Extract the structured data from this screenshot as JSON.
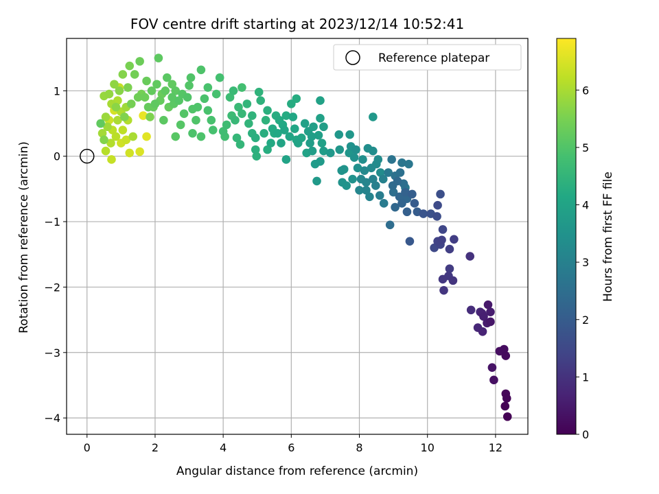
{
  "chart_data": {
    "type": "scatter",
    "title": "FOV centre drift starting at 2023/12/14 10:52:41",
    "xlabel": "Angular distance from reference (arcmin)",
    "ylabel": "Rotation from reference (arcmin)",
    "xlim": [
      -0.6,
      12.95
    ],
    "ylim": [
      -4.25,
      1.8
    ],
    "x_ticks": [
      0,
      2,
      4,
      6,
      8,
      10,
      12
    ],
    "y_ticks": [
      -4,
      -3,
      -2,
      -1,
      0,
      1
    ],
    "grid": true,
    "legend": {
      "position": "top-right",
      "entries": [
        "Reference platepar"
      ]
    },
    "colorbar": {
      "label": "Hours from first FF file",
      "colormap": "viridis",
      "range": [
        0,
        6.9
      ],
      "ticks": [
        0,
        1,
        2,
        3,
        4,
        5,
        6
      ]
    },
    "reference_point": {
      "x": 0,
      "y": 0,
      "label": "Reference platepar"
    },
    "points": [
      {
        "x": 12.35,
        "y": -3.98,
        "c": 0.0
      },
      {
        "x": 12.28,
        "y": -3.82,
        "c": 0.03
      },
      {
        "x": 12.33,
        "y": -3.7,
        "c": 0.06
      },
      {
        "x": 12.3,
        "y": -3.63,
        "c": 0.09
      },
      {
        "x": 12.3,
        "y": -3.05,
        "c": 0.18
      },
      {
        "x": 12.25,
        "y": -2.95,
        "c": 0.22
      },
      {
        "x": 12.12,
        "y": -2.98,
        "c": 0.26
      },
      {
        "x": 11.95,
        "y": -3.42,
        "c": 0.3
      },
      {
        "x": 11.9,
        "y": -3.23,
        "c": 0.35
      },
      {
        "x": 11.85,
        "y": -2.53,
        "c": 0.42
      },
      {
        "x": 11.78,
        "y": -2.27,
        "c": 0.48
      },
      {
        "x": 11.75,
        "y": -2.55,
        "c": 0.52
      },
      {
        "x": 11.85,
        "y": -2.38,
        "c": 0.56
      },
      {
        "x": 11.65,
        "y": -2.45,
        "c": 0.6
      },
      {
        "x": 11.6,
        "y": -2.4,
        "c": 0.65
      },
      {
        "x": 11.62,
        "y": -2.68,
        "c": 0.7
      },
      {
        "x": 11.48,
        "y": -2.62,
        "c": 0.75
      },
      {
        "x": 11.55,
        "y": -2.38,
        "c": 0.8
      },
      {
        "x": 11.28,
        "y": -2.35,
        "c": 0.88
      },
      {
        "x": 11.25,
        "y": -1.53,
        "c": 1.0
      },
      {
        "x": 10.75,
        "y": -1.9,
        "c": 1.05
      },
      {
        "x": 10.48,
        "y": -2.05,
        "c": 1.08
      },
      {
        "x": 10.45,
        "y": -1.88,
        "c": 1.12
      },
      {
        "x": 10.62,
        "y": -1.83,
        "c": 1.15
      },
      {
        "x": 10.65,
        "y": -1.72,
        "c": 1.2
      },
      {
        "x": 10.78,
        "y": -1.27,
        "c": 1.25
      },
      {
        "x": 10.65,
        "y": -1.42,
        "c": 1.28
      },
      {
        "x": 10.42,
        "y": -1.28,
        "c": 1.32
      },
      {
        "x": 10.3,
        "y": -1.3,
        "c": 1.36
      },
      {
        "x": 10.38,
        "y": -1.35,
        "c": 1.4
      },
      {
        "x": 10.45,
        "y": -1.12,
        "c": 1.45
      },
      {
        "x": 10.2,
        "y": -1.4,
        "c": 1.5
      },
      {
        "x": 10.3,
        "y": -0.75,
        "c": 1.56
      },
      {
        "x": 10.28,
        "y": -0.92,
        "c": 1.6
      },
      {
        "x": 10.38,
        "y": -0.58,
        "c": 1.65
      },
      {
        "x": 9.88,
        "y": -0.88,
        "c": 1.8
      },
      {
        "x": 9.48,
        "y": -1.3,
        "c": 1.9
      },
      {
        "x": 9.62,
        "y": -0.72,
        "c": 1.98
      },
      {
        "x": 9.55,
        "y": -0.58,
        "c": 2.05
      },
      {
        "x": 9.4,
        "y": -0.85,
        "c": 2.1
      },
      {
        "x": 9.35,
        "y": -0.55,
        "c": 2.15
      },
      {
        "x": 9.25,
        "y": -0.72,
        "c": 2.2
      },
      {
        "x": 9.18,
        "y": -0.62,
        "c": 2.25
      },
      {
        "x": 9.05,
        "y": -0.78,
        "c": 2.3
      },
      {
        "x": 9.12,
        "y": -0.38,
        "c": 2.35
      },
      {
        "x": 8.98,
        "y": -0.45,
        "c": 2.4
      },
      {
        "x": 8.9,
        "y": -1.05,
        "c": 2.45
      },
      {
        "x": 9.3,
        "y": -0.42,
        "c": 2.5
      },
      {
        "x": 9.2,
        "y": -0.25,
        "c": 2.55
      },
      {
        "x": 9.05,
        "y": -0.3,
        "c": 2.6
      },
      {
        "x": 8.95,
        "y": -0.05,
        "c": 2.65
      },
      {
        "x": 9.25,
        "y": -0.1,
        "c": 2.7
      },
      {
        "x": 9.45,
        "y": -0.12,
        "c": 2.72
      },
      {
        "x": 9.35,
        "y": -0.48,
        "c": 2.75
      },
      {
        "x": 8.85,
        "y": -0.25,
        "c": 2.8
      },
      {
        "x": 8.72,
        "y": -0.72,
        "c": 2.85
      },
      {
        "x": 8.6,
        "y": -0.6,
        "c": 2.9
      },
      {
        "x": 8.48,
        "y": -0.45,
        "c": 2.95
      },
      {
        "x": 8.4,
        "y": -0.35,
        "c": 3.0
      },
      {
        "x": 8.3,
        "y": -0.62,
        "c": 3.05
      },
      {
        "x": 8.2,
        "y": -0.52,
        "c": 3.1
      },
      {
        "x": 8.0,
        "y": -0.52,
        "c": 3.15
      },
      {
        "x": 8.05,
        "y": -0.35,
        "c": 3.18
      },
      {
        "x": 8.15,
        "y": -0.22,
        "c": 3.22
      },
      {
        "x": 8.35,
        "y": -0.18,
        "c": 3.25
      },
      {
        "x": 8.5,
        "y": -0.12,
        "c": 3.28
      },
      {
        "x": 8.62,
        "y": -0.25,
        "c": 3.3
      },
      {
        "x": 8.55,
        "y": -0.05,
        "c": 3.32
      },
      {
        "x": 8.4,
        "y": 0.08,
        "c": 3.35
      },
      {
        "x": 8.25,
        "y": 0.12,
        "c": 3.38
      },
      {
        "x": 8.1,
        "y": -0.05,
        "c": 3.4
      },
      {
        "x": 7.95,
        "y": -0.18,
        "c": 3.42
      },
      {
        "x": 7.85,
        "y": -0.02,
        "c": 3.45
      },
      {
        "x": 7.75,
        "y": 0.15,
        "c": 3.48
      },
      {
        "x": 7.62,
        "y": -0.45,
        "c": 3.5
      },
      {
        "x": 7.48,
        "y": -0.22,
        "c": 3.52
      },
      {
        "x": 7.55,
        "y": -0.2,
        "c": 3.55
      },
      {
        "x": 7.7,
        "y": 0.05,
        "c": 3.58
      },
      {
        "x": 7.42,
        "y": 0.1,
        "c": 3.6
      },
      {
        "x": 7.4,
        "y": 0.33,
        "c": 3.62
      },
      {
        "x": 7.72,
        "y": 0.33,
        "c": 3.64
      },
      {
        "x": 8.4,
        "y": 0.6,
        "c": 3.66
      },
      {
        "x": 6.75,
        "y": -0.38,
        "c": 3.7
      },
      {
        "x": 6.85,
        "y": -0.08,
        "c": 3.72
      },
      {
        "x": 6.7,
        "y": -0.12,
        "c": 3.75
      },
      {
        "x": 6.95,
        "y": 0.08,
        "c": 3.78
      },
      {
        "x": 6.62,
        "y": 0.08,
        "c": 3.8
      },
      {
        "x": 6.55,
        "y": 0.2,
        "c": 3.82
      },
      {
        "x": 6.5,
        "y": 0.38,
        "c": 3.84
      },
      {
        "x": 6.65,
        "y": 0.45,
        "c": 3.86
      },
      {
        "x": 6.8,
        "y": 0.32,
        "c": 3.88
      },
      {
        "x": 6.9,
        "y": 0.2,
        "c": 3.9
      },
      {
        "x": 6.85,
        "y": 0.58,
        "c": 3.92
      },
      {
        "x": 6.85,
        "y": 0.85,
        "c": 3.94
      },
      {
        "x": 6.45,
        "y": 0.05,
        "c": 3.96
      },
      {
        "x": 6.2,
        "y": 0.2,
        "c": 3.98
      },
      {
        "x": 5.85,
        "y": -0.05,
        "c": 4.0
      },
      {
        "x": 5.7,
        "y": 0.2,
        "c": 4.02
      },
      {
        "x": 5.8,
        "y": 0.4,
        "c": 4.04
      },
      {
        "x": 5.95,
        "y": 0.3,
        "c": 4.06
      },
      {
        "x": 6.1,
        "y": 0.42,
        "c": 4.08
      },
      {
        "x": 6.15,
        "y": 0.25,
        "c": 4.1
      },
      {
        "x": 6.05,
        "y": 0.6,
        "c": 4.12
      },
      {
        "x": 5.6,
        "y": 0.35,
        "c": 4.14
      },
      {
        "x": 5.4,
        "y": 0.2,
        "c": 4.16
      },
      {
        "x": 5.45,
        "y": 0.42,
        "c": 4.18
      },
      {
        "x": 5.65,
        "y": 0.55,
        "c": 4.2
      },
      {
        "x": 5.85,
        "y": 0.62,
        "c": 4.22
      },
      {
        "x": 6.0,
        "y": 0.8,
        "c": 4.24
      },
      {
        "x": 6.15,
        "y": 0.88,
        "c": 4.26
      },
      {
        "x": 5.3,
        "y": 0.1,
        "c": 4.28
      },
      {
        "x": 5.2,
        "y": 0.35,
        "c": 4.3
      },
      {
        "x": 4.95,
        "y": 0.28,
        "c": 4.32
      },
      {
        "x": 4.85,
        "y": 0.35,
        "c": 4.34
      },
      {
        "x": 4.95,
        "y": 0.1,
        "c": 4.36
      },
      {
        "x": 4.98,
        "y": 0.0,
        "c": 4.38
      },
      {
        "x": 5.25,
        "y": 0.55,
        "c": 4.4
      },
      {
        "x": 5.1,
        "y": 0.85,
        "c": 4.42
      },
      {
        "x": 5.05,
        "y": 0.98,
        "c": 4.44
      },
      {
        "x": 4.75,
        "y": 0.5,
        "c": 4.48
      },
      {
        "x": 4.5,
        "y": 0.18,
        "c": 4.52
      },
      {
        "x": 4.4,
        "y": 0.28,
        "c": 4.55
      },
      {
        "x": 4.55,
        "y": 0.65,
        "c": 4.58
      },
      {
        "x": 4.45,
        "y": 0.75,
        "c": 4.62
      },
      {
        "x": 4.3,
        "y": 1.0,
        "c": 4.65
      },
      {
        "x": 4.25,
        "y": 0.62,
        "c": 4.68
      },
      {
        "x": 4.1,
        "y": 0.48,
        "c": 4.72
      },
      {
        "x": 4.0,
        "y": 0.38,
        "c": 4.75
      },
      {
        "x": 4.05,
        "y": 0.3,
        "c": 4.78
      },
      {
        "x": 4.55,
        "y": 1.05,
        "c": 4.8
      },
      {
        "x": 3.9,
        "y": 1.2,
        "c": 4.82
      },
      {
        "x": 3.8,
        "y": 0.95,
        "c": 4.85
      },
      {
        "x": 3.65,
        "y": 0.55,
        "c": 4.88
      },
      {
        "x": 3.55,
        "y": 0.7,
        "c": 4.9
      },
      {
        "x": 3.45,
        "y": 0.88,
        "c": 4.92
      },
      {
        "x": 3.35,
        "y": 0.3,
        "c": 4.94
      },
      {
        "x": 3.35,
        "y": 1.32,
        "c": 4.96
      },
      {
        "x": 3.2,
        "y": 0.55,
        "c": 4.98
      },
      {
        "x": 3.1,
        "y": 0.72,
        "c": 5.0
      },
      {
        "x": 3.0,
        "y": 1.08,
        "c": 5.02
      },
      {
        "x": 2.85,
        "y": 0.65,
        "c": 5.04
      },
      {
        "x": 2.75,
        "y": 0.48,
        "c": 5.06
      },
      {
        "x": 2.6,
        "y": 0.3,
        "c": 5.08
      },
      {
        "x": 2.5,
        "y": 0.9,
        "c": 5.1
      },
      {
        "x": 2.35,
        "y": 1.2,
        "c": 5.12
      },
      {
        "x": 2.25,
        "y": 0.55,
        "c": 5.14
      },
      {
        "x": 2.1,
        "y": 1.5,
        "c": 5.16
      },
      {
        "x": 2.0,
        "y": 0.8,
        "c": 5.18
      },
      {
        "x": 1.9,
        "y": 1.0,
        "c": 5.22
      },
      {
        "x": 1.8,
        "y": 0.75,
        "c": 5.26
      },
      {
        "x": 1.75,
        "y": 1.15,
        "c": 5.3
      },
      {
        "x": 1.55,
        "y": 1.45,
        "c": 5.34
      },
      {
        "x": 1.5,
        "y": 0.9,
        "c": 5.38
      },
      {
        "x": 1.4,
        "y": 1.25,
        "c": 5.42
      },
      {
        "x": 1.3,
        "y": 0.8,
        "c": 5.46
      },
      {
        "x": 1.25,
        "y": 1.38,
        "c": 5.5
      },
      {
        "x": 1.2,
        "y": 1.05,
        "c": 5.54
      },
      {
        "x": 1.1,
        "y": 0.6,
        "c": 5.58
      },
      {
        "x": 1.05,
        "y": 1.25,
        "c": 5.62
      },
      {
        "x": 0.95,
        "y": 1.0,
        "c": 5.66
      },
      {
        "x": 0.85,
        "y": 0.75,
        "c": 5.7
      },
      {
        "x": 0.8,
        "y": 1.1,
        "c": 5.74
      },
      {
        "x": 0.65,
        "y": 0.95,
        "c": 5.78
      },
      {
        "x": 0.5,
        "y": 0.92,
        "c": 5.82
      },
      {
        "x": 0.55,
        "y": 0.6,
        "c": 5.86
      },
      {
        "x": 0.6,
        "y": 0.45,
        "c": 5.9
      },
      {
        "x": 0.45,
        "y": 0.35,
        "c": 5.94
      },
      {
        "x": 0.72,
        "y": 0.8,
        "c": 5.98
      },
      {
        "x": 0.9,
        "y": 0.55,
        "c": 6.02
      },
      {
        "x": 1.0,
        "y": 0.68,
        "c": 6.06
      },
      {
        "x": 0.7,
        "y": 0.2,
        "c": 6.1
      },
      {
        "x": 0.55,
        "y": 0.08,
        "c": 6.14
      },
      {
        "x": 0.85,
        "y": 0.3,
        "c": 6.18
      },
      {
        "x": 1.05,
        "y": 0.4,
        "c": 6.22
      },
      {
        "x": 0.95,
        "y": 1.05,
        "c": 6.26
      },
      {
        "x": 0.72,
        "y": -0.05,
        "c": 6.3
      },
      {
        "x": 1.15,
        "y": 0.25,
        "c": 6.34
      },
      {
        "x": 0.65,
        "y": 0.55,
        "c": 6.38
      },
      {
        "x": 1.25,
        "y": 0.05,
        "c": 6.42
      },
      {
        "x": 0.8,
        "y": 0.7,
        "c": 6.46
      },
      {
        "x": 1.55,
        "y": 0.07,
        "c": 6.52
      },
      {
        "x": 1.75,
        "y": 0.3,
        "c": 6.6
      },
      {
        "x": 1.65,
        "y": 0.62,
        "c": 6.7
      },
      {
        "x": 0.4,
        "y": 0.5,
        "c": 5.2
      },
      {
        "x": 0.5,
        "y": 0.25,
        "c": 5.6
      },
      {
        "x": 1.35,
        "y": 0.3,
        "c": 6.0
      },
      {
        "x": 1.0,
        "y": 0.2,
        "c": 6.4
      },
      {
        "x": 2.4,
        "y": 0.75,
        "c": 5.25
      },
      {
        "x": 2.6,
        "y": 1.0,
        "c": 5.15
      },
      {
        "x": 2.7,
        "y": 0.85,
        "c": 5.05
      },
      {
        "x": 2.95,
        "y": 0.9,
        "c": 5.0
      },
      {
        "x": 3.1,
        "y": 0.35,
        "c": 4.95
      },
      {
        "x": 3.7,
        "y": 0.4,
        "c": 4.85
      },
      {
        "x": 4.2,
        "y": 0.9,
        "c": 4.7
      },
      {
        "x": 4.7,
        "y": 0.8,
        "c": 4.5
      },
      {
        "x": 5.3,
        "y": 0.7,
        "c": 4.35
      },
      {
        "x": 5.75,
        "y": 0.48,
        "c": 4.15
      },
      {
        "x": 6.3,
        "y": 0.28,
        "c": 4.05
      },
      {
        "x": 6.95,
        "y": 0.45,
        "c": 3.85
      },
      {
        "x": 7.8,
        "y": -0.35,
        "c": 3.48
      },
      {
        "x": 8.7,
        "y": -0.35,
        "c": 3.0
      },
      {
        "x": 9.7,
        "y": -0.85,
        "c": 2.0
      },
      {
        "x": 10.1,
        "y": -0.88,
        "c": 1.7
      },
      {
        "x": 2.2,
        "y": 0.95,
        "c": 5.3
      },
      {
        "x": 1.85,
        "y": 0.6,
        "c": 5.55
      },
      {
        "x": 1.6,
        "y": 0.95,
        "c": 5.45
      },
      {
        "x": 3.55,
        "y": 1.05,
        "c": 4.9
      },
      {
        "x": 4.85,
        "y": 0.62,
        "c": 4.45
      },
      {
        "x": 5.55,
        "y": 0.62,
        "c": 4.25
      },
      {
        "x": 6.4,
        "y": 0.5,
        "c": 3.9
      },
      {
        "x": 7.15,
        "y": 0.05,
        "c": 3.65
      },
      {
        "x": 7.9,
        "y": 0.1,
        "c": 3.4
      },
      {
        "x": 9.0,
        "y": -0.55,
        "c": 2.5
      },
      {
        "x": 9.4,
        "y": -0.65,
        "c": 2.3
      },
      {
        "x": 1.15,
        "y": 0.75,
        "c": 5.9
      },
      {
        "x": 0.9,
        "y": 0.85,
        "c": 6.05
      },
      {
        "x": 0.75,
        "y": 0.4,
        "c": 6.2
      },
      {
        "x": 1.2,
        "y": 0.55,
        "c": 6.1
      },
      {
        "x": 2.5,
        "y": 1.1,
        "c": 5.2
      },
      {
        "x": 3.25,
        "y": 0.75,
        "c": 4.97
      },
      {
        "x": 4.35,
        "y": 0.55,
        "c": 4.6
      },
      {
        "x": 5.5,
        "y": 0.35,
        "c": 4.2
      },
      {
        "x": 6.6,
        "y": 0.3,
        "c": 3.85
      },
      {
        "x": 7.5,
        "y": -0.4,
        "c": 3.52
      },
      {
        "x": 8.2,
        "y": -0.4,
        "c": 3.12
      },
      {
        "x": 2.05,
        "y": 1.1,
        "c": 5.2
      },
      {
        "x": 2.15,
        "y": 0.85,
        "c": 5.25
      },
      {
        "x": 2.3,
        "y": 1.0,
        "c": 5.18
      },
      {
        "x": 2.55,
        "y": 0.8,
        "c": 5.12
      },
      {
        "x": 2.8,
        "y": 0.95,
        "c": 5.05
      },
      {
        "x": 3.05,
        "y": 1.2,
        "c": 5.0
      },
      {
        "x": 1.7,
        "y": 0.9,
        "c": 5.35
      },
      {
        "x": 1.95,
        "y": 0.75,
        "c": 5.28
      }
    ]
  }
}
